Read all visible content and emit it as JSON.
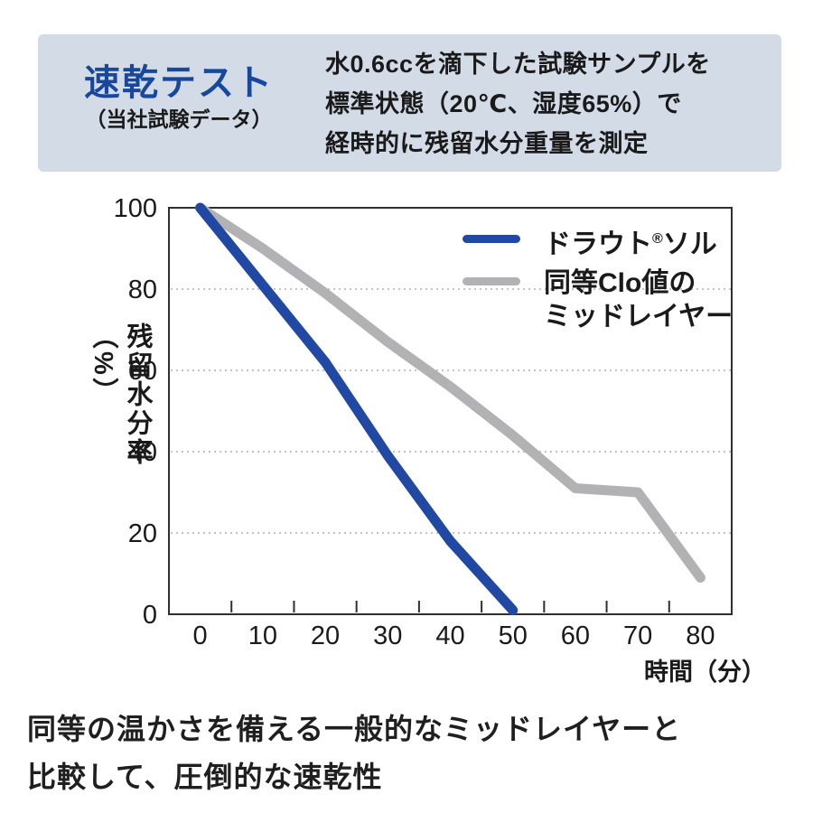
{
  "header": {
    "title": "速乾テスト",
    "subtitle": "（当社試験データ）",
    "description_lines": [
      "水0.6ccを滴下した試験サンプルを",
      "標準状態（20℃、湿度65%）で",
      "経時的に残留水分重量を測定"
    ]
  },
  "chart_data": {
    "type": "line",
    "title": "",
    "xlabel": "時間（分）",
    "ylabel": "残留水分率（%）",
    "xlim": [
      -5,
      85
    ],
    "ylim": [
      0,
      100
    ],
    "xticks": [
      0,
      10,
      20,
      30,
      40,
      50,
      60,
      70,
      80
    ],
    "minor_xticks": [
      5,
      15,
      25,
      35,
      45,
      55,
      65,
      75
    ],
    "yticks": [
      0,
      20,
      40,
      60,
      80,
      100
    ],
    "gridlines_y": [
      20,
      40,
      60,
      80
    ],
    "grid_style": "dotted",
    "legend_position": "top-right-inside",
    "series": [
      {
        "name": "ドラウト®ソル",
        "color": "#2149a4",
        "x": [
          0,
          10,
          20,
          30,
          40,
          50
        ],
        "values": [
          100,
          81,
          62,
          39,
          18,
          1
        ]
      },
      {
        "name": "同等Clo値のミッドレイヤー",
        "color": "#b2b2b4",
        "x": [
          0,
          10,
          20,
          30,
          40,
          50,
          60,
          70,
          80
        ],
        "values": [
          100,
          90,
          79,
          67,
          56,
          44,
          31,
          30,
          9
        ]
      }
    ]
  },
  "legend": {
    "item1": {
      "pre": "ドラウト",
      "reg": "®",
      "post": "ソル"
    },
    "item2": {
      "line1": "同等Clo値の",
      "line2": "ミッドレイヤー"
    }
  },
  "footer": {
    "lines": [
      "同等の温かさを備える一般的なミッドレイヤーと",
      "比較して、圧倒的な速乾性"
    ]
  },
  "colors": {
    "header_bg": "#d3dbe7",
    "title_blue": "#17489e",
    "line_blue": "#2149a4",
    "line_gray": "#b2b2b4",
    "grid_gray": "#c4c4c4",
    "axis_dark": "#2f2f2f",
    "text_dark": "#1a1a1a"
  }
}
